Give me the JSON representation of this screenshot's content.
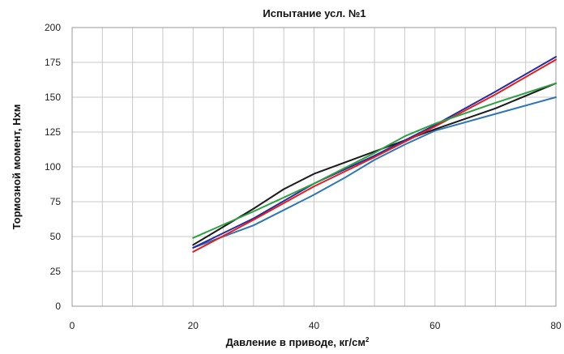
{
  "chart_data": {
    "type": "line",
    "title": "Испытание усл. №1",
    "xlabel": "Давление в приводе, кг/см",
    "xlabel_sup": "2",
    "ylabel": "Тормозной момент, Нхм",
    "xlim": [
      0,
      80
    ],
    "ylim": [
      0,
      200
    ],
    "x_ticks": [
      0,
      20,
      40,
      60,
      80
    ],
    "y_ticks": [
      0,
      25,
      50,
      75,
      100,
      125,
      150,
      175,
      200
    ],
    "x_grid_step": 5,
    "y_grid_step": 25,
    "grid": true,
    "legend": "none",
    "series": [
      {
        "color": "#2e75b6",
        "x": [
          20,
          30,
          40,
          45,
          50,
          55,
          60,
          70,
          80
        ],
        "y": [
          42,
          58,
          80,
          92,
          105,
          116,
          126,
          138,
          150
        ]
      },
      {
        "color": "#1a1a1a",
        "x": [
          20,
          25,
          30,
          35,
          40,
          45,
          50,
          55,
          60,
          70,
          80
        ],
        "y": [
          44,
          57,
          70,
          84,
          95,
          103,
          111,
          119,
          127,
          142,
          160
        ]
      },
      {
        "color": "#2a2aa0",
        "x": [
          20,
          30,
          40,
          50,
          60,
          70,
          80
        ],
        "y": [
          42,
          63,
          88,
          108,
          130,
          154,
          179
        ]
      },
      {
        "color": "#e02020",
        "x": [
          20,
          30,
          40,
          50,
          60,
          70,
          80
        ],
        "y": [
          39,
          62,
          86,
          107,
          129,
          152,
          177
        ]
      },
      {
        "color": "#2ea043",
        "x": [
          20,
          30,
          40,
          50,
          55,
          60,
          70,
          80
        ],
        "y": [
          49,
          68,
          88,
          110,
          122,
          131,
          146,
          160
        ]
      }
    ]
  }
}
